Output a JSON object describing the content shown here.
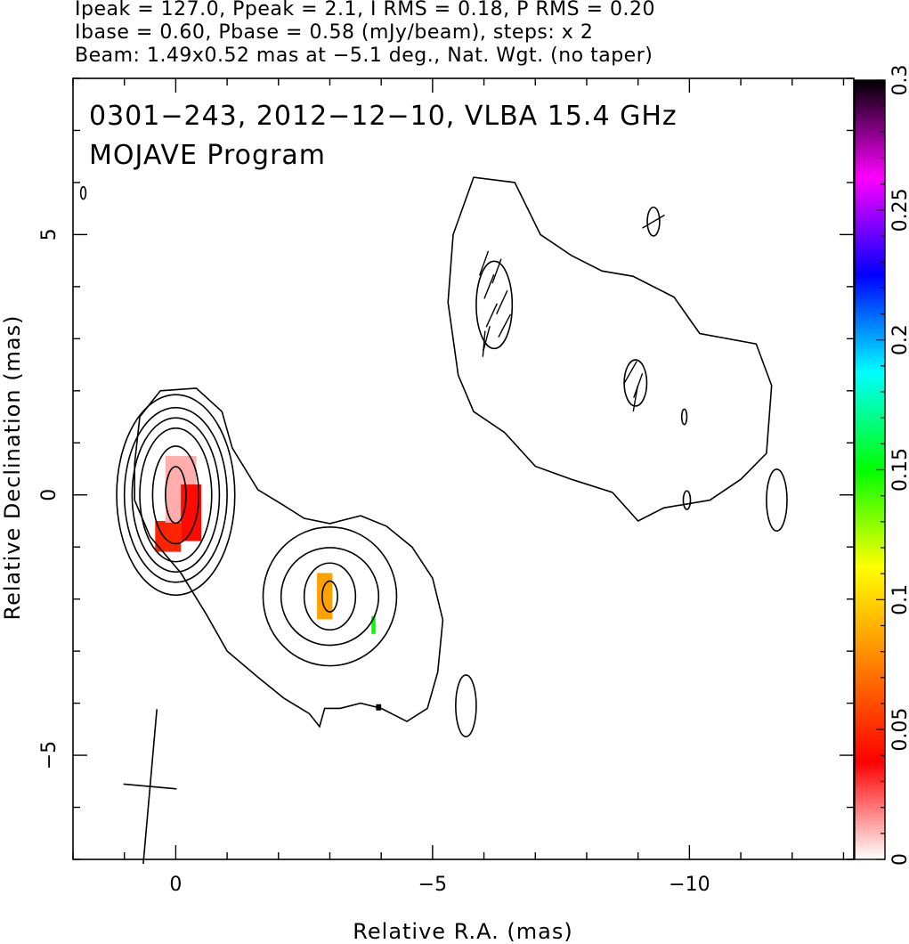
{
  "header": {
    "line1": "Ipeak = 127.0, Ppeak = 2.1, I RMS = 0.18, P RMS = 0.20",
    "line2": "Ibase = 0.60, Pbase = 0.58 (mJy/beam), steps: x 2",
    "line3": "Beam: 1.49x0.52 mas at −5.1 deg., Nat. Wgt. (no taper)"
  },
  "chart_data": {
    "type": "heatmap",
    "title_lines": [
      "0301−243, 2012−12−10, VLBA 15.4 GHz",
      "MOJAVE Program"
    ],
    "xlabel": "Relative R.A. (mas)",
    "ylabel": "Relative Declination (mas)",
    "xlim": [
      2,
      -13.2
    ],
    "ylim": [
      -7.0,
      8.0
    ],
    "x_ticks": [
      0,
      -5,
      -10
    ],
    "x_tick_labels": [
      "0",
      "−5",
      "−10"
    ],
    "y_ticks": [
      -5,
      0,
      5
    ],
    "y_tick_labels": [
      "−5",
      "0",
      "5"
    ],
    "colorbar": {
      "range": [
        0,
        0.3
      ],
      "ticks": [
        0,
        0.05,
        0.1,
        0.15,
        0.2,
        0.25,
        0.3
      ],
      "tick_labels": [
        "0",
        "0.05",
        "0.1",
        "0.15",
        "0.2",
        "0.25",
        "0.3"
      ],
      "colormap": [
        "#ffffff",
        "#ff0000",
        "#ff8000",
        "#ffff00",
        "#00ff00",
        "#00ffff",
        "#0000ff",
        "#ff00ff",
        "#000000"
      ]
    },
    "contours": {
      "levels_mJy": [
        0.6,
        1.2,
        2.4,
        4.8,
        9.6,
        19.2,
        38.4,
        76.8
      ],
      "core_components": [
        {
          "cx": 0.0,
          "cy": 0.0,
          "rx": [
            0.2,
            0.45,
            0.7,
            0.85,
            1.0,
            1.15
          ],
          "ry": [
            0.55,
            0.95,
            1.3,
            1.5,
            1.7,
            1.95
          ]
        }
      ],
      "knot_components": [
        {
          "cx": -3.0,
          "cy": -1.95,
          "rx": [
            0.15,
            0.5,
            0.95,
            1.3
          ],
          "ry": [
            0.3,
            0.65,
            0.95,
            1.35
          ]
        }
      ],
      "outer_envelope_core": [
        [
          0.8,
          0.6
        ],
        [
          0.7,
          1.5
        ],
        [
          0.3,
          2.0
        ],
        [
          -0.4,
          2.05
        ],
        [
          -0.9,
          1.6
        ],
        [
          -1.1,
          0.9
        ],
        [
          -1.6,
          0.1
        ],
        [
          -2.1,
          -0.2
        ],
        [
          -2.5,
          -0.45
        ],
        [
          -3.0,
          -0.55
        ],
        [
          -3.6,
          -0.4
        ],
        [
          -4.1,
          -0.6
        ],
        [
          -4.6,
          -1.0
        ],
        [
          -5.0,
          -1.6
        ],
        [
          -5.2,
          -2.4
        ],
        [
          -5.1,
          -3.4
        ],
        [
          -4.9,
          -4.1
        ],
        [
          -4.5,
          -4.35
        ],
        [
          -4.0,
          -4.1
        ],
        [
          -3.6,
          -4.0
        ],
        [
          -3.2,
          -4.1
        ],
        [
          -2.9,
          -4.1
        ],
        [
          -2.8,
          -4.45
        ],
        [
          -2.6,
          -4.2
        ],
        [
          -2.1,
          -3.9
        ],
        [
          -1.6,
          -3.5
        ],
        [
          -1.0,
          -3.0
        ],
        [
          -0.6,
          -2.3
        ],
        [
          -0.1,
          -1.5
        ],
        [
          0.5,
          -0.8
        ],
        [
          0.8,
          -0.1
        ]
      ],
      "outer_envelope_west": [
        [
          -5.5,
          2.3
        ],
        [
          -5.3,
          3.7
        ],
        [
          -5.4,
          5.0
        ],
        [
          -5.8,
          6.1
        ],
        [
          -6.6,
          6.0
        ],
        [
          -7.1,
          5.0
        ],
        [
          -7.7,
          4.6
        ],
        [
          -8.3,
          4.3
        ],
        [
          -8.9,
          4.2
        ],
        [
          -9.7,
          3.8
        ],
        [
          -10.2,
          3.1
        ],
        [
          -11.3,
          2.9
        ],
        [
          -11.6,
          2.1
        ],
        [
          -11.5,
          0.8
        ],
        [
          -11.0,
          0.3
        ],
        [
          -10.4,
          -0.1
        ],
        [
          -9.5,
          -0.25
        ],
        [
          -9.0,
          -0.5
        ],
        [
          -8.5,
          0.05
        ],
        [
          -7.7,
          0.3
        ],
        [
          -7.0,
          0.55
        ],
        [
          -6.4,
          1.2
        ],
        [
          -5.8,
          1.6
        ]
      ],
      "west_islands": [
        {
          "cx": -6.2,
          "cy": 3.65,
          "rx": 0.35,
          "ry": 0.85
        },
        {
          "cx": -8.95,
          "cy": 2.15,
          "rx": 0.22,
          "ry": 0.45
        },
        {
          "cx": -9.3,
          "cy": 5.25,
          "rx": 0.12,
          "ry": 0.28
        },
        {
          "cx": -9.9,
          "cy": 1.5,
          "rx": 0.05,
          "ry": 0.15
        },
        {
          "cx": -9.95,
          "cy": -0.1,
          "rx": 0.07,
          "ry": 0.18
        },
        {
          "cx": -11.7,
          "cy": -0.1,
          "rx": 0.2,
          "ry": 0.6
        },
        {
          "cx": -5.65,
          "cy": -4.05,
          "rx": 0.2,
          "ry": 0.6
        },
        {
          "cx": 1.8,
          "cy": 5.8,
          "rx": 0.05,
          "ry": 0.12
        }
      ]
    },
    "polarization_pixels": [
      {
        "x": 0.15,
        "y": -0.8,
        "w": 0.5,
        "h": 0.6,
        "frac": 0.048
      },
      {
        "x": -0.1,
        "y": 0.1,
        "w": 0.6,
        "h": 1.3,
        "frac": 0.012
      },
      {
        "x": -0.3,
        "y": -0.35,
        "w": 0.4,
        "h": 1.1,
        "frac": 0.04
      },
      {
        "x": -2.9,
        "y": -1.95,
        "w": 0.3,
        "h": 0.9,
        "frac": 0.085
      },
      {
        "x": -3.85,
        "y": -2.5,
        "w": 0.08,
        "h": 0.35,
        "frac": 0.15
      },
      {
        "x": -3.95,
        "y": -4.08,
        "w": 0.1,
        "h": 0.12,
        "frac": 0.3
      }
    ],
    "evpa_sticks": [
      {
        "x": -6.0,
        "y": 4.45,
        "angle_deg": 20
      },
      {
        "x": -6.25,
        "y": 4.3,
        "angle_deg": 20
      },
      {
        "x": -6.1,
        "y": 4.0,
        "angle_deg": 22
      },
      {
        "x": -6.35,
        "y": 3.7,
        "angle_deg": 25
      },
      {
        "x": -6.15,
        "y": 3.45,
        "angle_deg": 25
      },
      {
        "x": -6.4,
        "y": 3.25,
        "angle_deg": 28
      },
      {
        "x": -6.05,
        "y": 3.0,
        "angle_deg": 15
      },
      {
        "x": -6.0,
        "y": 2.9,
        "angle_deg": 5
      },
      {
        "x": -8.85,
        "y": 2.35,
        "angle_deg": 30
      },
      {
        "x": -9.0,
        "y": 2.1,
        "angle_deg": 20
      },
      {
        "x": -8.95,
        "y": 1.85,
        "angle_deg": 10
      },
      {
        "x": -9.3,
        "y": 5.25,
        "angle_deg": 60
      }
    ],
    "beam": {
      "major_mas": 1.49,
      "minor_mas": 0.52,
      "pa_deg": -5.1,
      "center": [
        0.5,
        -5.6
      ]
    }
  }
}
